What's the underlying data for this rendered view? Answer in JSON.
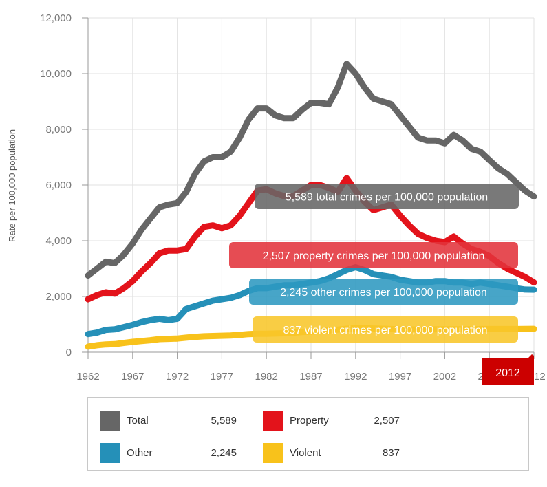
{
  "chart_data": {
    "type": "line",
    "title": "",
    "xlabel": "",
    "ylabel": "Rate per 100,000 population",
    "ylim": [
      0,
      12000
    ],
    "xlim": [
      1962,
      2012
    ],
    "grid": true,
    "y_ticks": [
      "0",
      "2,000",
      "4,000",
      "6,000",
      "8,000",
      "10,000",
      "12,000"
    ],
    "y_tick_values": [
      0,
      2000,
      4000,
      6000,
      8000,
      10000,
      12000
    ],
    "x_ticks": [
      "1962",
      "1967",
      "1972",
      "1977",
      "1982",
      "1987",
      "1992",
      "1997",
      "2002",
      "2007",
      "2012"
    ],
    "x_tick_values": [
      1962,
      1967,
      1972,
      1977,
      1982,
      1987,
      1992,
      1997,
      2002,
      2007,
      2012
    ],
    "x": [
      1962,
      1963,
      1964,
      1965,
      1966,
      1967,
      1968,
      1969,
      1970,
      1971,
      1972,
      1973,
      1974,
      1975,
      1976,
      1977,
      1978,
      1979,
      1980,
      1981,
      1982,
      1983,
      1984,
      1985,
      1986,
      1987,
      1988,
      1989,
      1990,
      1991,
      1992,
      1993,
      1994,
      1995,
      1996,
      1997,
      1998,
      1999,
      2000,
      2001,
      2002,
      2003,
      2004,
      2005,
      2006,
      2007,
      2008,
      2009,
      2010,
      2011,
      2012
    ],
    "series": [
      {
        "name": "Total",
        "color": "#666666",
        "values": [
          2750,
          3000,
          3250,
          3200,
          3500,
          3900,
          4400,
          4800,
          5200,
          5300,
          5350,
          5750,
          6400,
          6850,
          7000,
          7000,
          7200,
          7700,
          8350,
          8750,
          8750,
          8500,
          8400,
          8400,
          8700,
          8950,
          8950,
          8900,
          9500,
          10350,
          10000,
          9500,
          9100,
          9000,
          8900,
          8500,
          8100,
          7700,
          7600,
          7600,
          7500,
          7800,
          7600,
          7300,
          7200,
          6900,
          6600,
          6400,
          6100,
          5800,
          5589
        ]
      },
      {
        "name": "Property",
        "color": "#e3131b",
        "values": [
          1900,
          2050,
          2150,
          2100,
          2300,
          2550,
          2900,
          3200,
          3550,
          3650,
          3650,
          3700,
          4150,
          4500,
          4550,
          4450,
          4550,
          4900,
          5350,
          5800,
          5850,
          5700,
          5600,
          5600,
          5800,
          6000,
          6000,
          5900,
          5750,
          6250,
          5800,
          5400,
          5100,
          5200,
          5300,
          4900,
          4550,
          4250,
          4100,
          4000,
          3950,
          4150,
          3900,
          3700,
          3600,
          3450,
          3200,
          3000,
          2850,
          2700,
          2507
        ]
      },
      {
        "name": "Other",
        "color": "#2590b8",
        "values": [
          650,
          700,
          800,
          820,
          900,
          980,
          1080,
          1150,
          1200,
          1150,
          1200,
          1550,
          1650,
          1750,
          1850,
          1900,
          1950,
          2050,
          2200,
          2300,
          2300,
          2350,
          2400,
          2400,
          2450,
          2500,
          2550,
          2650,
          2800,
          2950,
          3050,
          2950,
          2800,
          2750,
          2700,
          2600,
          2550,
          2500,
          2500,
          2550,
          2550,
          2500,
          2500,
          2450,
          2500,
          2450,
          2400,
          2350,
          2300,
          2250,
          2245
        ]
      },
      {
        "name": "Violent",
        "color": "#f8c21b",
        "values": [
          200,
          250,
          280,
          290,
          330,
          370,
          400,
          430,
          470,
          480,
          490,
          520,
          550,
          570,
          580,
          590,
          600,
          620,
          650,
          660,
          660,
          670,
          680,
          700,
          720,
          740,
          760,
          780,
          810,
          840,
          860,
          860,
          850,
          840,
          830,
          820,
          820,
          810,
          810,
          820,
          820,
          820,
          820,
          820,
          830,
          830,
          830,
          830,
          830,
          835,
          837
        ]
      }
    ],
    "callouts": [
      {
        "series": "Total",
        "text": "5,589 total crimes per 100,000 population",
        "color": "#666666"
      },
      {
        "series": "Property",
        "text": "2,507 property crimes per 100,000 population",
        "color": "#e3333b"
      },
      {
        "series": "Other",
        "text": "2,245 other crimes per 100,000 population",
        "color": "#2e98c0"
      },
      {
        "series": "Violent",
        "text": "837 violent crimes per 100,000 population",
        "color": "#f8c62a"
      }
    ],
    "highlight_year": "2012",
    "highlight_color": "#cc0000",
    "legend": {
      "placement": "bottom",
      "items": [
        {
          "name": "Total",
          "value": "5,589",
          "color": "#666666"
        },
        {
          "name": "Property",
          "value": "2,507",
          "color": "#e3131b"
        },
        {
          "name": "Other",
          "value": "2,245",
          "color": "#2590b8"
        },
        {
          "name": "Violent",
          "value": "837",
          "color": "#f8c21b"
        }
      ]
    }
  }
}
